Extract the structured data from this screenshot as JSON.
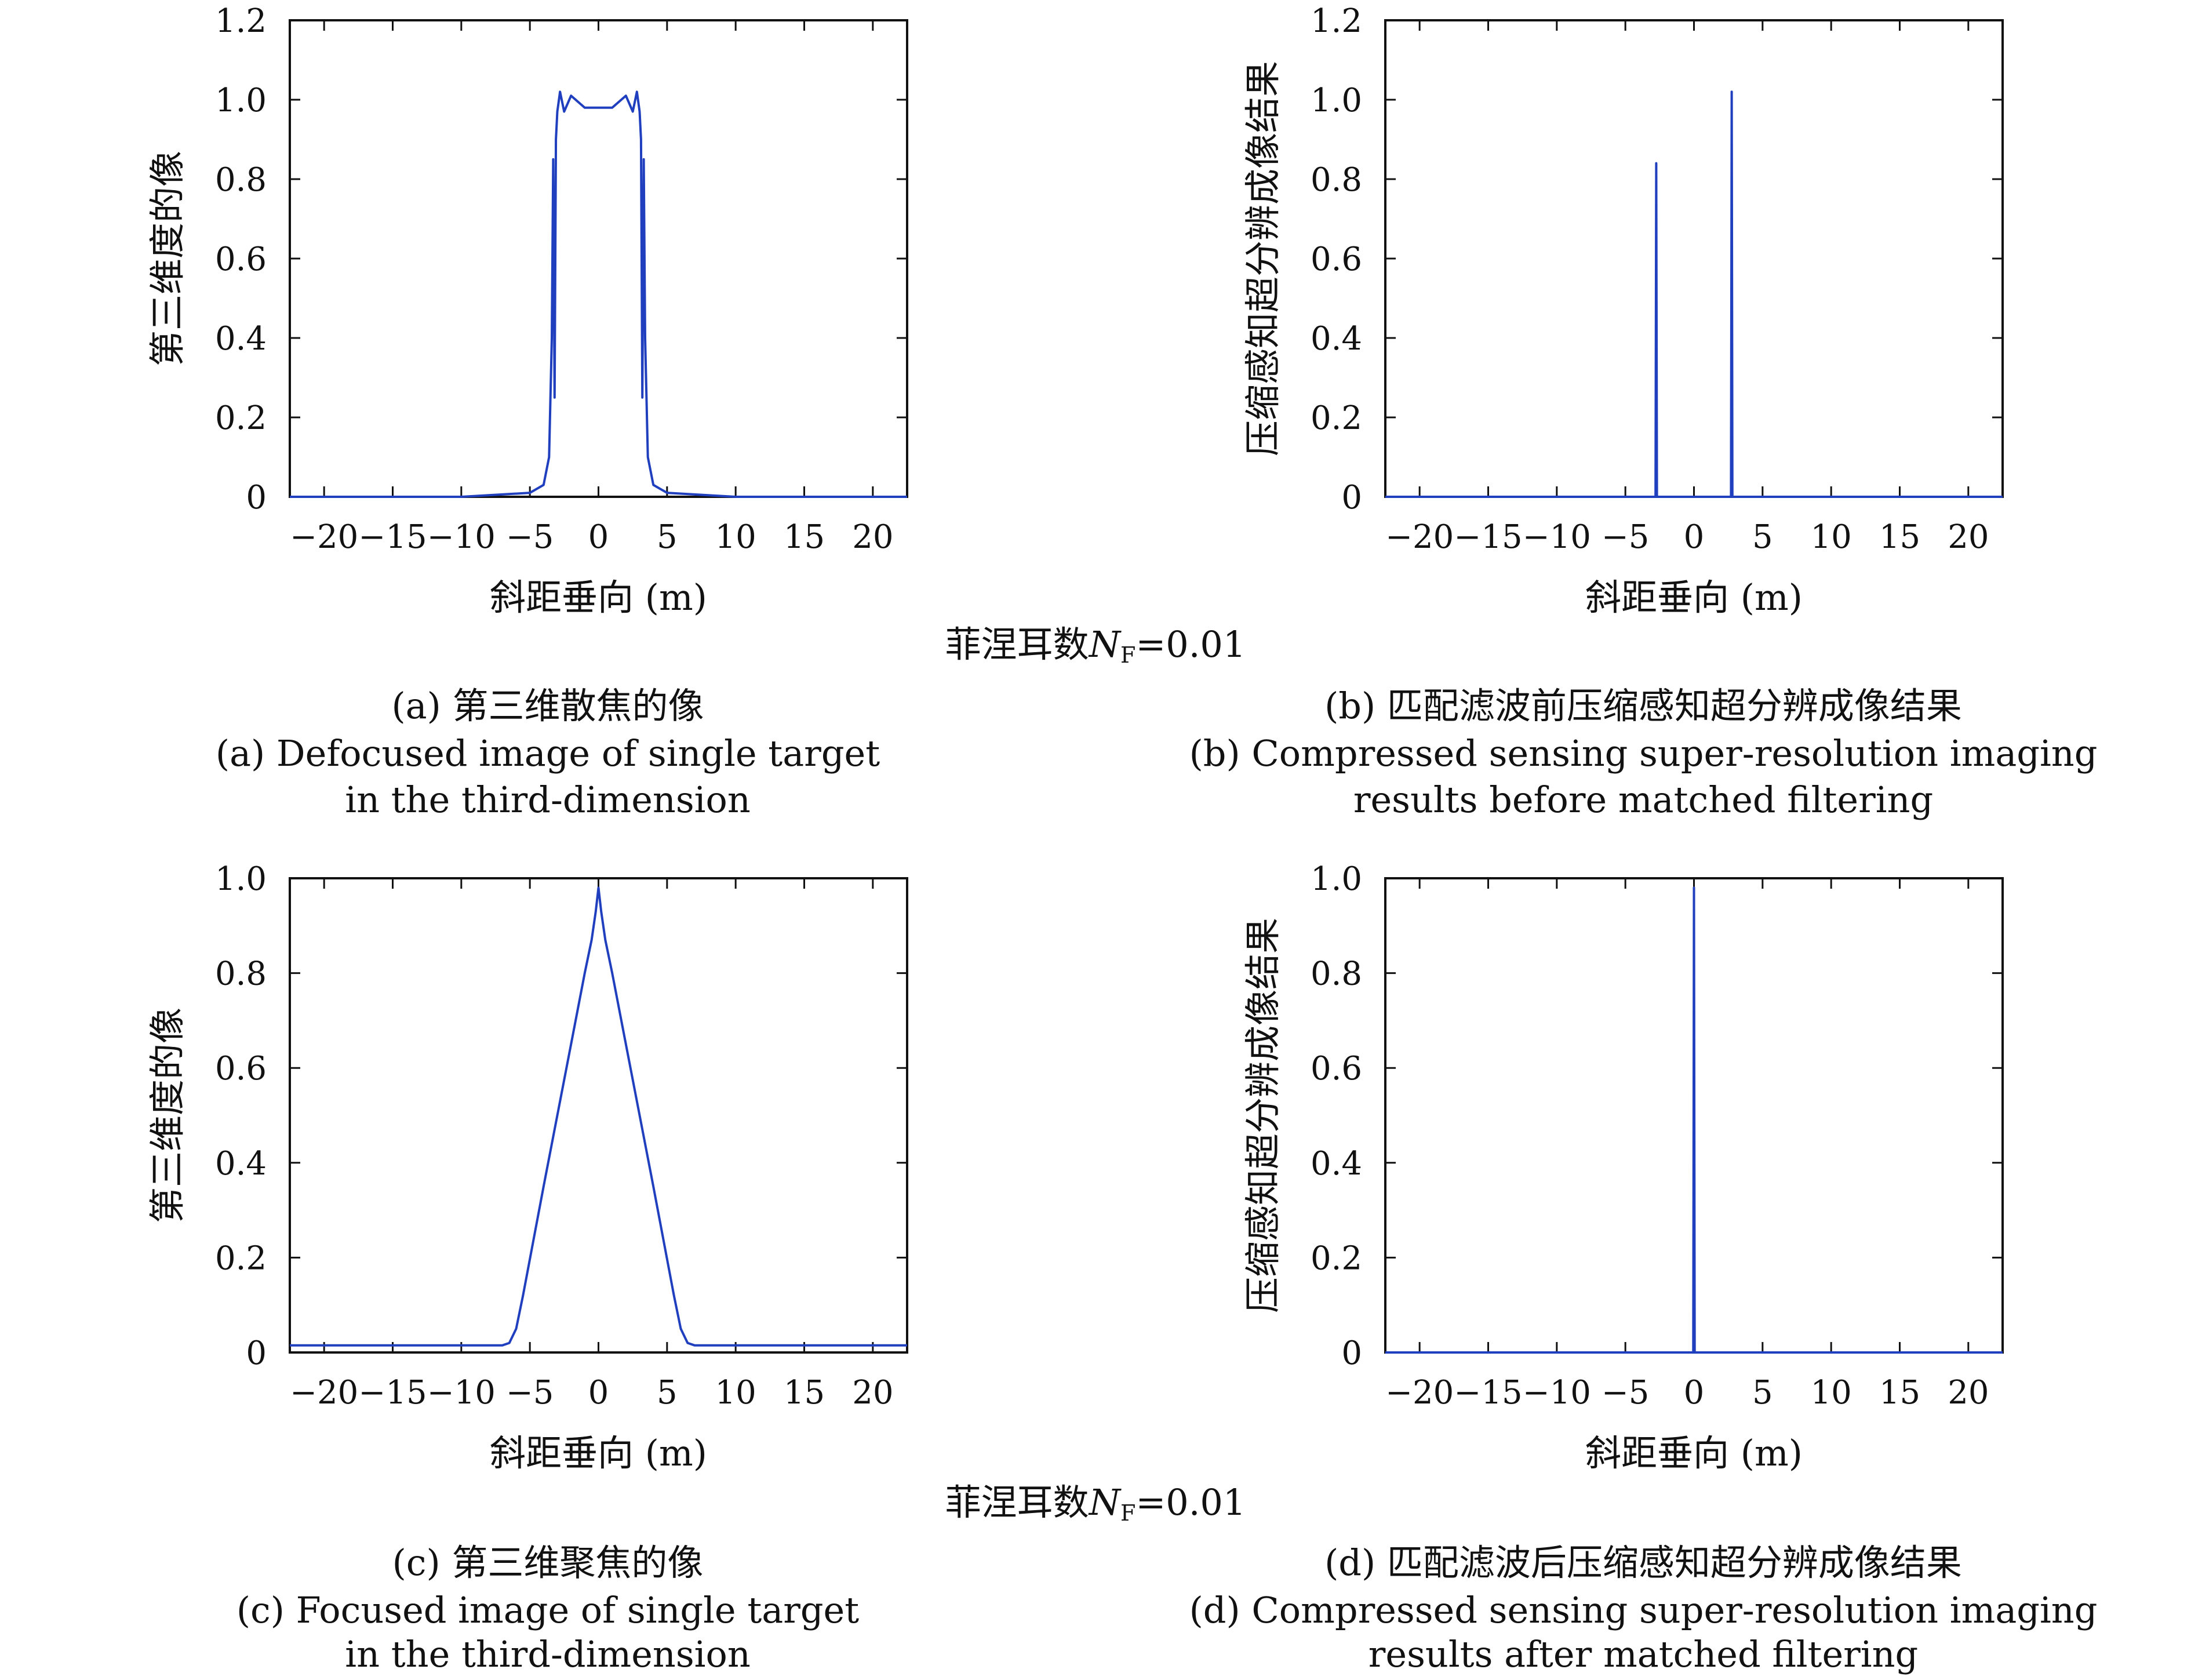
{
  "fresnel_label": {
    "prefix": "菲涅耳数",
    "symbol": "N",
    "subscript": "F",
    "value": "=0.01"
  },
  "captions": {
    "a": {
      "zh": "(a) 第三维散焦的像",
      "en1": "(a) Defocused image of single target",
      "en2": "in the third-dimension"
    },
    "b": {
      "zh": "(b) 匹配滤波前压缩感知超分辨成像结果",
      "en1": "(b) Compressed sensing super-resolution imaging",
      "en2": "results before matched filtering"
    },
    "c": {
      "zh": "(c) 第三维聚焦的像",
      "en1": "(c) Focused image of single target",
      "en2": "in the third-dimension"
    },
    "d": {
      "zh": "(d) 匹配滤波后压缩感知超分辨成像结果",
      "en1": "(d) Compressed sensing super-resolution imaging",
      "en2": "results after matched filtering"
    }
  },
  "colors": {
    "line": "#1f3fbf",
    "axis": "#111111"
  },
  "chart_data": [
    {
      "id": "a",
      "type": "line",
      "xlabel": "斜距垂向 (m)",
      "ylabel": "第三维度的像",
      "xlim": [
        -22.5,
        22.5
      ],
      "ylim": [
        0,
        1.2
      ],
      "xticks": [
        -20,
        -15,
        -10,
        -5,
        0,
        5,
        10,
        15,
        20
      ],
      "xtick_labels": [
        "−20",
        "−15",
        "−10",
        "−5",
        "0",
        "5",
        "10",
        "15",
        "20"
      ],
      "yticks": [
        0,
        0.2,
        0.4,
        0.6,
        0.8,
        1.0,
        1.2
      ],
      "ytick_labels": [
        "0",
        "0.2",
        "0.4",
        "0.6",
        "0.8",
        "1.0",
        "1.2"
      ],
      "grid": false,
      "series": [
        {
          "x": [
            -22.5,
            -10,
            -5,
            -4,
            -3.6,
            -3.4,
            -3.3,
            -3.2,
            -3.1,
            -3.0,
            -2.8,
            -2.5,
            -2.0,
            -1.0,
            0,
            1.0,
            2.0,
            2.5,
            2.8,
            3.0,
            3.1,
            3.2,
            3.3,
            3.4,
            3.6,
            4,
            5,
            10,
            22.5
          ],
          "y": [
            0.0,
            0.0,
            0.01,
            0.03,
            0.1,
            0.4,
            0.85,
            0.25,
            0.9,
            0.97,
            1.02,
            0.97,
            1.01,
            0.98,
            0.98,
            0.98,
            1.01,
            0.97,
            1.02,
            0.97,
            0.9,
            0.25,
            0.85,
            0.4,
            0.1,
            0.03,
            0.01,
            0.0,
            0.0
          ]
        }
      ]
    },
    {
      "id": "b",
      "type": "line",
      "xlabel": "斜距垂向 (m)",
      "ylabel": "压缩感知超分辨成像结果",
      "xlim": [
        -22.5,
        22.5
      ],
      "ylim": [
        0,
        1.2
      ],
      "xticks": [
        -20,
        -15,
        -10,
        -5,
        0,
        5,
        10,
        15,
        20
      ],
      "xtick_labels": [
        "−20",
        "−15",
        "−10",
        "−5",
        "0",
        "5",
        "10",
        "15",
        "20"
      ],
      "yticks": [
        0,
        0.2,
        0.4,
        0.6,
        0.8,
        1.0,
        1.2
      ],
      "ytick_labels": [
        "0",
        "0.2",
        "0.4",
        "0.6",
        "0.8",
        "1.0",
        "1.2"
      ],
      "grid": false,
      "series": [
        {
          "x": [
            -22.5,
            -2.8,
            -2.75,
            -2.7,
            2.7,
            2.75,
            2.8,
            22.5
          ],
          "y": [
            0,
            0,
            0.84,
            0,
            0,
            1.02,
            0,
            0
          ]
        }
      ]
    },
    {
      "id": "c",
      "type": "line",
      "xlabel": "斜距垂向 (m)",
      "ylabel": "第三维度的像",
      "xlim": [
        -22.5,
        22.5
      ],
      "ylim": [
        0,
        1.0
      ],
      "xticks": [
        -20,
        -15,
        -10,
        -5,
        0,
        5,
        10,
        15,
        20
      ],
      "xtick_labels": [
        "−20",
        "−15",
        "−10",
        "−5",
        "0",
        "5",
        "10",
        "15",
        "20"
      ],
      "yticks": [
        0,
        0.2,
        0.4,
        0.6,
        0.8,
        1.0
      ],
      "ytick_labels": [
        "0",
        "0.2",
        "0.4",
        "0.6",
        "0.8",
        "1.0"
      ],
      "grid": false,
      "series": [
        {
          "x": [
            -22.5,
            -7,
            -6.5,
            -6,
            -5.5,
            -4,
            -2,
            -1,
            -0.5,
            -0.2,
            0,
            0.2,
            0.5,
            1,
            2,
            4,
            5.5,
            6,
            6.5,
            7,
            22.5
          ],
          "y": [
            0.015,
            0.015,
            0.02,
            0.05,
            0.12,
            0.35,
            0.65,
            0.8,
            0.87,
            0.93,
            0.98,
            0.93,
            0.87,
            0.8,
            0.65,
            0.35,
            0.12,
            0.05,
            0.02,
            0.015,
            0.015
          ]
        }
      ]
    },
    {
      "id": "d",
      "type": "line",
      "xlabel": "斜距垂向 (m)",
      "ylabel": "压缩感知超分辨成像结果",
      "xlim": [
        -22.5,
        22.5
      ],
      "ylim": [
        0,
        1.0
      ],
      "xticks": [
        -20,
        -15,
        -10,
        -5,
        0,
        5,
        10,
        15,
        20
      ],
      "xtick_labels": [
        "−20",
        "−15",
        "−10",
        "−5",
        "0",
        "5",
        "10",
        "15",
        "20"
      ],
      "yticks": [
        0,
        0.2,
        0.4,
        0.6,
        0.8,
        1.0
      ],
      "ytick_labels": [
        "0",
        "0.2",
        "0.4",
        "0.6",
        "0.8",
        "1.0"
      ],
      "grid": false,
      "series": [
        {
          "x": [
            -22.5,
            -0.05,
            0,
            0.05,
            22.5
          ],
          "y": [
            0,
            0,
            0.98,
            0,
            0
          ]
        }
      ]
    }
  ]
}
